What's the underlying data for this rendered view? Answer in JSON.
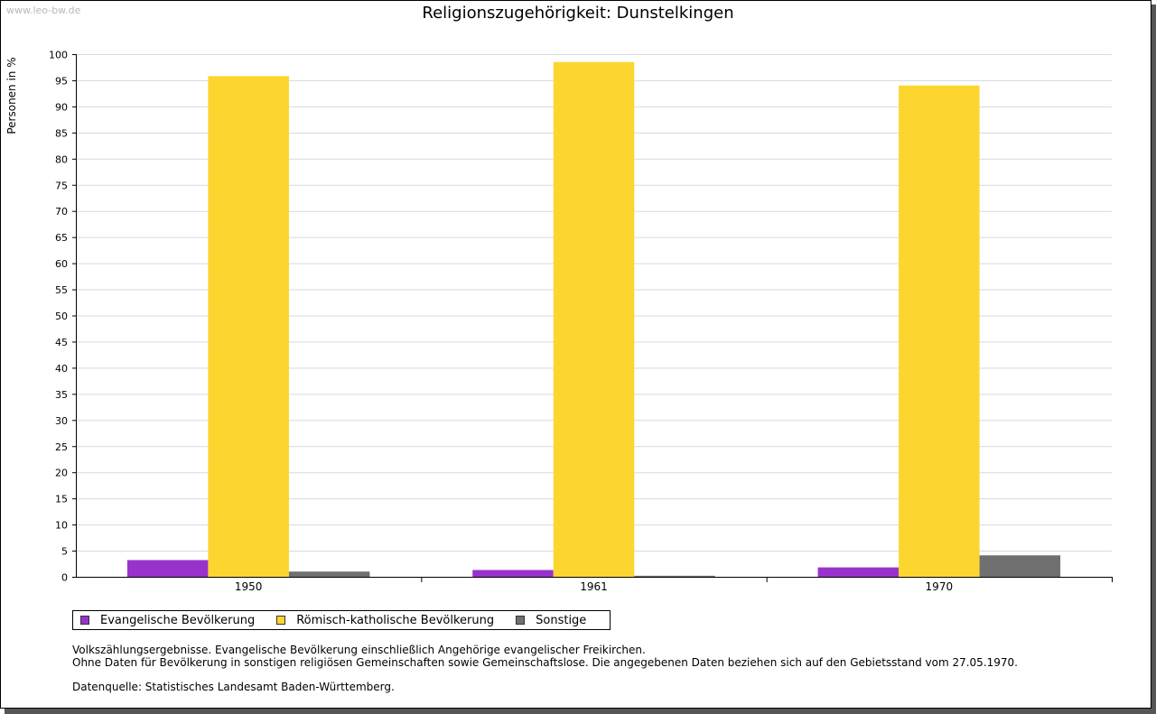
{
  "watermark": "www.leo-bw.de",
  "chart_data": {
    "type": "bar",
    "title": "Religionszugehörigkeit: Dunstelkingen",
    "xlabel": "",
    "ylabel": "Personen in %",
    "ylim": [
      0,
      100
    ],
    "ytick_step": 5,
    "categories": [
      "1950",
      "1961",
      "1970"
    ],
    "series": [
      {
        "name": "Evangelische Bevölkerung",
        "color": "#9932cc",
        "values": [
          3.2,
          1.3,
          1.8
        ]
      },
      {
        "name": "Römisch-katholische Bevölkerung",
        "color": "#fdd52f",
        "values": [
          95.8,
          98.5,
          94.0
        ]
      },
      {
        "name": "Sonstige",
        "color": "#707070",
        "values": [
          1.0,
          0.2,
          4.1
        ]
      }
    ],
    "grid": true,
    "legend_position": "bottom-left"
  },
  "notes": {
    "line1": "Volkszählungsergebnisse. Evangelische Bevölkerung einschließlich Angehörige evangelischer Freikirchen.",
    "line2": "Ohne Daten für Bevölkerung in sonstigen religiösen Gemeinschaften sowie Gemeinschaftslose. Die angegebenen Daten beziehen sich auf den Gebietsstand vom 27.05.1970.",
    "source": "Datenquelle: Statistisches Landesamt Baden-Württemberg."
  }
}
